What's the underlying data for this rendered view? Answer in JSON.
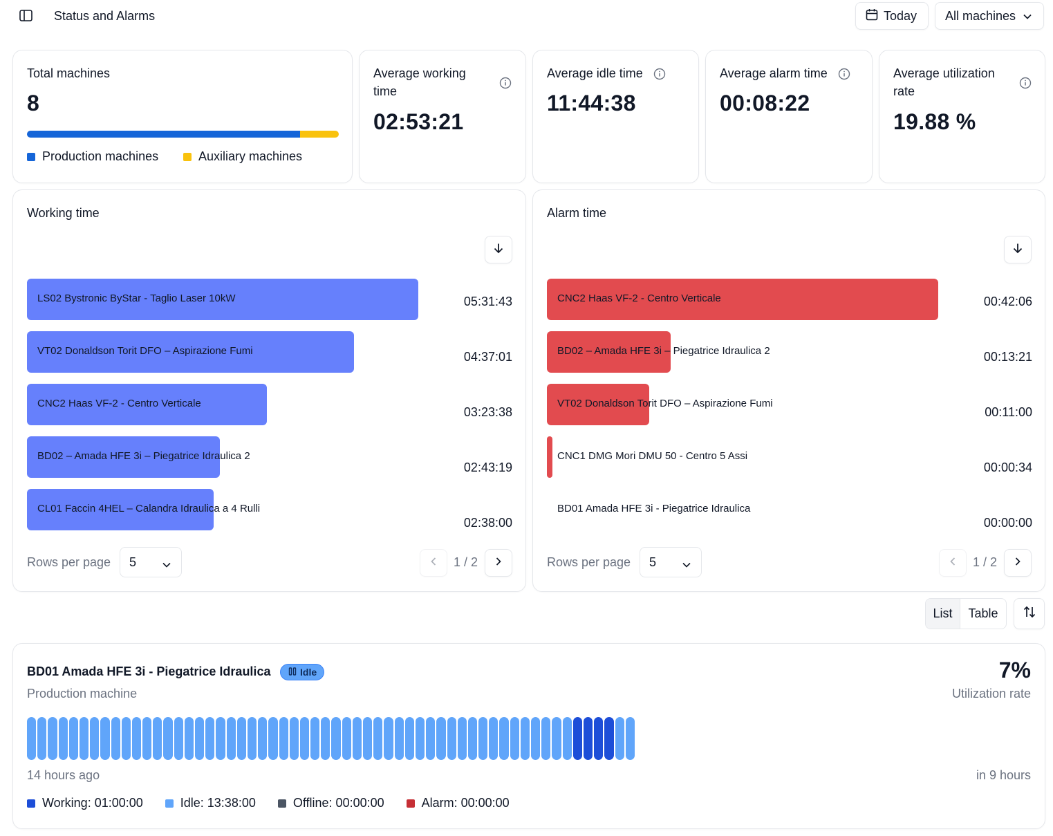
{
  "header": {
    "title": "Status and Alarms",
    "date_button": "Today",
    "machine_filter": "All machines"
  },
  "stats": {
    "total_machines": {
      "label": "Total machines",
      "value": "8",
      "production_fraction": 0.876,
      "legend": [
        "Production machines",
        "Auxiliary machines"
      ],
      "colors": {
        "production": "#1565d8",
        "auxiliary": "#f9c20d"
      }
    },
    "avg_working": {
      "label": "Average working time",
      "value": "02:53:21"
    },
    "avg_idle": {
      "label": "Average idle time",
      "value": "11:44:38"
    },
    "avg_alarm": {
      "label": "Average alarm time",
      "value": "00:08:22"
    },
    "avg_utilization": {
      "label": "Average utilization rate",
      "value": "19.88 %"
    }
  },
  "working_chart": {
    "title": "Working time",
    "color": "#6680fc",
    "chart_data": {
      "type": "bar",
      "categories": [
        "LS02 Bystronic ByStar - Taglio Laser 10kW",
        "VT02 Donaldson Torit DFO – Aspirazione Fumi",
        "CNC2 Haas VF-2 - Centro Verticale",
        "BD02 – Amada HFE 3i – Piegatrice Idraulica 2",
        "CL01 Faccin 4HEL – Calandra Idraulica a 4 Rulli"
      ],
      "labels": [
        "05:31:43",
        "04:37:01",
        "03:23:38",
        "02:43:19",
        "02:38:00"
      ],
      "values": [
        19903,
        16621,
        12218,
        9799,
        9480
      ],
      "max": 19903
    },
    "rows_per_page_label": "Rows per page",
    "rows_per_page": "5",
    "page": "1 / 2"
  },
  "alarm_chart": {
    "title": "Alarm time",
    "color": "#e24b4f",
    "chart_data": {
      "type": "bar",
      "categories": [
        "CNC2 Haas VF-2 - Centro Verticale",
        "BD02 – Amada HFE 3i – Piegatrice Idraulica 2",
        "VT02 Donaldson Torit DFO – Aspirazione Fumi",
        "CNC1 DMG Mori DMU 50 - Centro 5 Assi",
        "BD01 Amada HFE 3i - Piegatrice Idraulica"
      ],
      "labels": [
        "00:42:06",
        "00:13:21",
        "00:11:00",
        "00:00:34",
        "00:00:00"
      ],
      "values": [
        2526,
        801,
        660,
        34,
        0
      ],
      "max": 2526
    },
    "rows_per_page_label": "Rows per page",
    "rows_per_page": "5",
    "page": "1 / 2"
  },
  "view_toggle": {
    "list": "List",
    "table": "Table"
  },
  "machine_card": {
    "name": "BD01 Amada HFE 3i - Piegatrice Idraulica",
    "status": "Idle",
    "type": "Production machine",
    "utilization": "7%",
    "utilization_label": "Utilization rate",
    "start_label": "14 hours ago",
    "end_label": "in 9 hours",
    "timeline": [
      "idle",
      "idle",
      "idle",
      "idle",
      "idle",
      "idle",
      "idle",
      "idle",
      "idle",
      "idle",
      "idle",
      "idle",
      "idle",
      "idle",
      "idle",
      "idle",
      "idle",
      "idle",
      "idle",
      "idle",
      "idle",
      "idle",
      "idle",
      "idle",
      "idle",
      "idle",
      "idle",
      "idle",
      "idle",
      "idle",
      "idle",
      "idle",
      "idle",
      "idle",
      "idle",
      "idle",
      "idle",
      "idle",
      "idle",
      "idle",
      "idle",
      "idle",
      "idle",
      "idle",
      "idle",
      "idle",
      "idle",
      "idle",
      "idle",
      "idle",
      "idle",
      "idle",
      "working",
      "working",
      "working",
      "working",
      "idle",
      "idle"
    ],
    "colors": {
      "working": "#1d4ed8",
      "idle": "#60a5fa",
      "offline": "#4b5563",
      "alarm": "#c62f35"
    },
    "legend": [
      {
        "key": "working",
        "text": "Working: 01:00:00"
      },
      {
        "key": "idle",
        "text": "Idle: 13:38:00"
      },
      {
        "key": "offline",
        "text": "Offline: 00:00:00"
      },
      {
        "key": "alarm",
        "text": "Alarm: 00:00:00"
      }
    ]
  }
}
